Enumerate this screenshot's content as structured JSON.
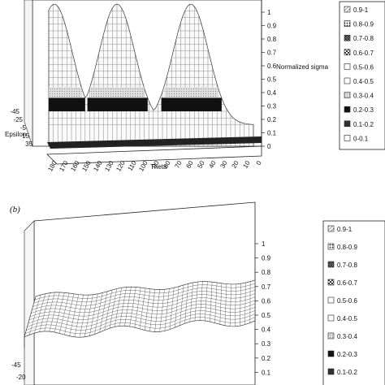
{
  "chart_data": [
    {
      "type": "surface3d",
      "panel": "",
      "xlabel": "Theta",
      "ylabel": "Epsilon",
      "zlabel": "Normalized sigma",
      "x_ticks": [
        "180",
        "170",
        "160",
        "150",
        "140",
        "130",
        "120",
        "110",
        "100",
        "90",
        "80",
        "70",
        "60",
        "50",
        "40",
        "30",
        "20",
        "10",
        "0"
      ],
      "y_ticks": [
        "-45",
        "-25",
        "-5",
        "15",
        "35"
      ],
      "z_ticks": [
        "1",
        "0.9",
        "0.8",
        "0.7",
        "0.6",
        "0.5",
        "0.4",
        "0.3",
        "0.2",
        "0.1",
        "0"
      ],
      "zlim": [
        0,
        1
      ],
      "peak_theta": [
        175,
        120,
        55
      ],
      "peak_value": 1.0,
      "base_value": 0.1,
      "legend": [
        "0.9-1",
        "0.8-0.9",
        "0.7-0.8",
        "0.6-0.7",
        "0.5-0.6",
        "0.4-0.5",
        "0.3-0.4",
        "0.2-0.3",
        "0.1-0.2",
        "0-0.1"
      ]
    },
    {
      "type": "surface3d",
      "panel": "(b)",
      "ylabel": "",
      "y_ticks": [
        "-45",
        "-20"
      ],
      "z_ticks": [
        "1",
        "0.9",
        "0.8",
        "0.7",
        "0.6",
        "0.5",
        "0.4",
        "0.3",
        "0.2",
        "0.1"
      ],
      "zlim": [
        0,
        1
      ],
      "surface_level": 0.62,
      "surface_range": [
        0.58,
        0.68
      ],
      "legend": [
        "0.9-1",
        "0.8-0.9",
        "0.7-0.8",
        "0.6-0.7",
        "0.5-0.6",
        "0.4-0.5",
        "0.3-0.4",
        "0.2-0.3",
        "0.1-0.2"
      ]
    }
  ],
  "legend_patterns": [
    "hatch",
    "dots",
    "cross",
    "checker",
    "white",
    "white",
    "light",
    "black",
    "hatch-dark",
    "white"
  ]
}
